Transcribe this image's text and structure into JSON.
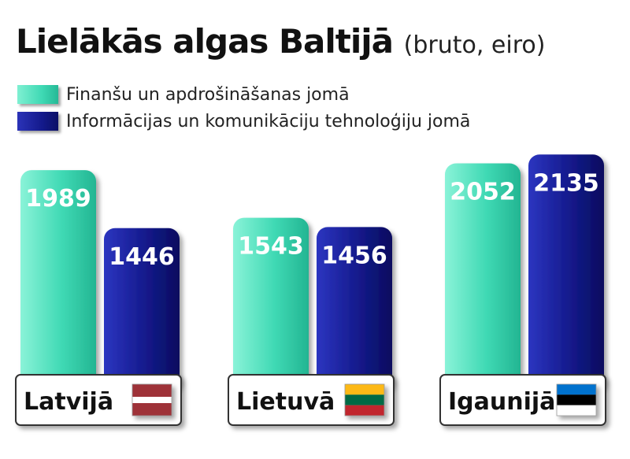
{
  "title": "Lielākās algas Baltijā",
  "subtitle": "(bruto, eiro)",
  "legend": [
    {
      "label": "Finanšu un apdrošināšanas jomā",
      "color": "#3fd9b4"
    },
    {
      "label": "Informācijas un komunikāciju tehnoloģiju jomā",
      "color": "#141a8c"
    }
  ],
  "chart_data": {
    "type": "bar",
    "title": "Lielākās algas Baltijā",
    "subtitle": "(bruto, eiro)",
    "categories": [
      "Latvijā",
      "Lietuvā",
      "Igaunijā"
    ],
    "series": [
      {
        "name": "Finanšu un apdrošināšanas jomā",
        "color": "#3fd9b4",
        "values": [
          1989,
          1543,
          2052
        ]
      },
      {
        "name": "Informācijas un komunikāciju tehnoloģiju jomā",
        "color": "#141a8c",
        "values": [
          1446,
          1456,
          2135
        ]
      }
    ],
    "legend_position": "top-left",
    "grid": false,
    "flags": [
      {
        "name": "latvia-flag-icon",
        "stripes": [
          "#9e3039",
          "#ffffff",
          "#9e3039"
        ],
        "ratios": [
          2,
          1,
          2
        ]
      },
      {
        "name": "lithuania-flag-icon",
        "stripes": [
          "#fdb913",
          "#006a44",
          "#c1272d"
        ],
        "ratios": [
          1,
          1,
          1
        ]
      },
      {
        "name": "estonia-flag-icon",
        "stripes": [
          "#0072ce",
          "#000000",
          "#ffffff"
        ],
        "ratios": [
          1,
          1,
          1
        ]
      }
    ]
  }
}
